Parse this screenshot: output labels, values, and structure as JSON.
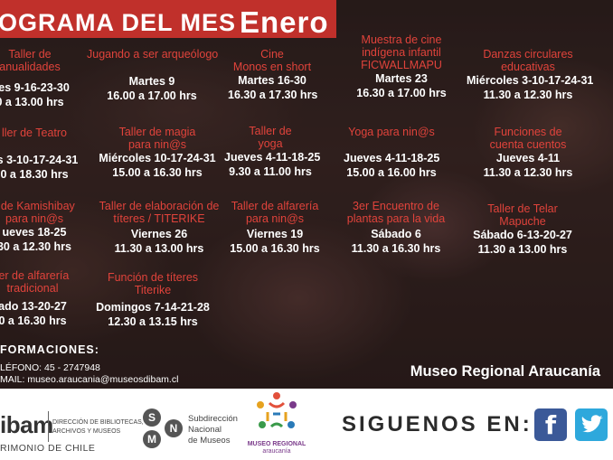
{
  "header": {
    "title": "OGRAMA DEL MES",
    "month": "Enero"
  },
  "events": [
    {
      "name1": "Taller de",
      "name2": "anualidades",
      "d1": "rtes 9-16-23-30",
      "d2": "0 a 13.00 hrs"
    },
    {
      "name1": "Jugando a ser arqueólogo",
      "name2": "",
      "d1": "Martes 9",
      "d2": "16.00 a 17.00 hrs"
    },
    {
      "name1": "Cine",
      "name2": "Monos en short",
      "d1": "Martes 16-30",
      "d2": "16.30 a 17.30 hrs"
    },
    {
      "name1": "Muestra de cine",
      "name2": "indígena infantil",
      "name3": "FICWALLMAPU",
      "d1": "Martes 23",
      "d2": "16.30 a 17.00 hrs"
    },
    {
      "name1": "Danzas circulares",
      "name2": "educativas",
      "d1": "Miércoles 3-10-17-24-31",
      "d2": "11.30 a 12.30 hrs"
    },
    {
      "name1": "ller de Teatro",
      "name2": "",
      "d1": "es 3-10-17-24-31",
      "d2": "0 a 18.30 hrs"
    },
    {
      "name1": "Taller de magia",
      "name2": "para nin@s",
      "d1": "Miércoles 10-17-24-31",
      "d2": "15.00 a 16.30 hrs"
    },
    {
      "name1": "Taller de",
      "name2": "yoga",
      "d1": "Jueves 4-11-18-25",
      "d2": "9.30 a 11.00 hrs"
    },
    {
      "name1": "Yoga para nin@s",
      "name2": "",
      "d1": "Jueves 4-11-18-25",
      "d2": "15.00 a 16.00 hrs"
    },
    {
      "name1": "Funciones de",
      "name2": "cuenta cuentos",
      "d1": "Jueves 4-11",
      "d2": "11.30 a 12.30 hrs"
    },
    {
      "name1": "r de Kamishibay",
      "name2": "para nin@s",
      "d1": "ueves 18-25",
      "d2": "30 a 12.30 hrs"
    },
    {
      "name1": "Taller de elaboración de",
      "name2": "títeres / TITERIKE",
      "d1": "Viernes 26",
      "d2": "11.30 a 13.00 hrs"
    },
    {
      "name1": "Taller de alfarería",
      "name2": "para nin@s",
      "d1": "Viernes 19",
      "d2": "15.00 a 16.30 hrs"
    },
    {
      "name1": "3er Encuentro de",
      "name2": "plantas para la vida",
      "d1": "Sábado 6",
      "d2": "11.30 a 16.30 hrs"
    },
    {
      "name1": "Taller de Telar",
      "name2": "Mapuche",
      "d1": "Sábado 6-13-20-27",
      "d2": "11.30 a 13.00 hrs"
    },
    {
      "name1": "ler de alfarería",
      "name2": "tradicional",
      "d1": "ado 13-20-27",
      "d2": "0 a 16.30 hrs"
    },
    {
      "name1": "Función de títeres",
      "name2": "Titerike",
      "d1": "Domingos 7-14-21-28",
      "d2": "12.30 a 13.15 hrs"
    }
  ],
  "info": {
    "title": "FORMACIONES:",
    "phone": "LÉFONO: 45 - 2747948",
    "email": "MAIL: museo.araucania@museosdibam.cl"
  },
  "museum": "Museo Regional Araucanía",
  "footer": {
    "dibam": "ibam",
    "dibam_text1": "DIRECCIÓN DE BIBLIOTECAS,",
    "dibam_text2": "ARCHIVOS Y MUSEOS",
    "patrimonio": "RIMONIO DE CHILE",
    "snm_letters": [
      "S",
      "N",
      "M"
    ],
    "snm_text1": "Subdirección",
    "snm_text2": "Nacional",
    "snm_text3": "de Museos",
    "museo_logo1": "MUSEO REGIONAL",
    "museo_logo2": "araucanía",
    "siguenos": "SIGUENOS EN:",
    "fb_letter": "f",
    "colors": {
      "accent": "#c0302b",
      "facebook": "#3b5998",
      "twitter": "#2ea8dc"
    },
    "icons": [
      "facebook-icon",
      "twitter-icon"
    ]
  }
}
